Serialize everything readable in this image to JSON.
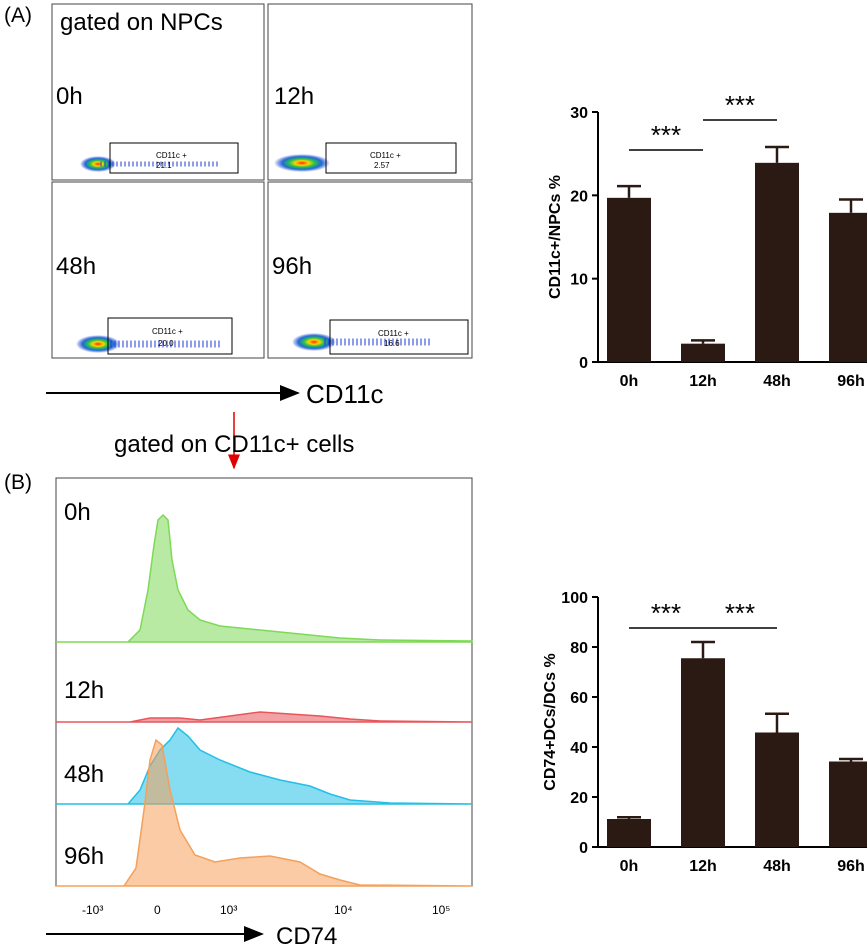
{
  "panel_a": {
    "label": "(A)",
    "gate_text": "gated on NPCs",
    "axis_label": "CD11c",
    "plots": [
      {
        "time": "0h",
        "gate_name": "CD11c +",
        "gate_value": "21.1"
      },
      {
        "time": "12h",
        "gate_name": "CD11c +",
        "gate_value": "2.57"
      },
      {
        "time": "48h",
        "gate_name": "CD11c +",
        "gate_value": "20.0"
      },
      {
        "time": "96h",
        "gate_name": "CD11c +",
        "gate_value": "16.6"
      }
    ]
  },
  "arrow_text": "gated on CD11c+ cells",
  "panel_b": {
    "label": "(B)",
    "axis_label": "CD74",
    "ticks": [
      "-10³",
      "0",
      "10³",
      "10⁴",
      "10⁵"
    ],
    "histograms": [
      {
        "time": "0h",
        "color": "#7ed957"
      },
      {
        "time": "12h",
        "color": "#e8555a"
      },
      {
        "time": "48h",
        "color": "#23bfe6"
      },
      {
        "time": "96h",
        "color": "#f5a05a"
      }
    ]
  },
  "chart_data": [
    {
      "type": "bar",
      "categories": [
        "0h",
        "12h",
        "48h",
        "96h"
      ],
      "values": [
        19.7,
        2.2,
        23.9,
        17.9
      ],
      "errors": [
        1.4,
        0.4,
        1.9,
        1.6
      ],
      "ylabel": "CD11c+/NPCs %",
      "ylim": [
        0,
        30
      ],
      "yticks": [
        "0",
        "10",
        "20",
        "30"
      ],
      "significance": [
        {
          "from": 0,
          "to": 1,
          "label": "***"
        },
        {
          "from": 1,
          "to": 2,
          "label": "***"
        }
      ],
      "bar_color": "#2b1a14"
    },
    {
      "type": "bar",
      "categories": [
        "0h",
        "12h",
        "48h",
        "96h"
      ],
      "values": [
        11.2,
        75.5,
        45.8,
        34.2
      ],
      "errors": [
        0.7,
        6.5,
        7.5,
        1.0
      ],
      "ylabel": "CD74+DCs/DCs %",
      "ylim": [
        0,
        100
      ],
      "yticks": [
        "0",
        "20",
        "40",
        "60",
        "80",
        "100"
      ],
      "significance": [
        {
          "from": 0,
          "to": 1,
          "label": "***"
        },
        {
          "from": 1,
          "to": 2,
          "label": "***"
        }
      ],
      "bar_color": "#2b1a14"
    }
  ]
}
